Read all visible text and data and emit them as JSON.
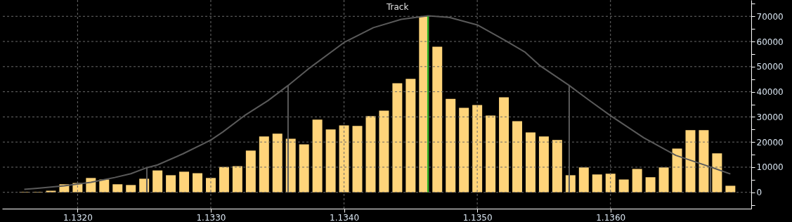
{
  "chart_data": {
    "type": "bar",
    "annotations": [
      "Track"
    ],
    "xlim": [
      1.13146,
      1.13703
    ],
    "xticks": [
      {
        "value": 1.132,
        "label": "1.1320"
      },
      {
        "value": 1.133,
        "label": "1.1330"
      },
      {
        "value": 1.134,
        "label": "1.1340"
      },
      {
        "value": 1.135,
        "label": "1.1350"
      },
      {
        "value": 1.136,
        "label": "1.1360"
      }
    ],
    "ylim": [
      -6500,
      76500
    ],
    "yticks": [
      {
        "value": -5000,
        "label": null
      },
      0,
      {
        "value": 5000,
        "label": null
      },
      10000,
      {
        "value": 15000,
        "label": null
      },
      20000,
      {
        "value": 25000,
        "label": null
      },
      30000,
      {
        "value": 35000,
        "label": null
      },
      40000,
      {
        "value": 45000,
        "label": null
      },
      50000,
      {
        "value": 55000,
        "label": null
      },
      60000,
      {
        "value": 65000,
        "label": null
      },
      70000,
      {
        "value": 75000,
        "label": null
      }
    ],
    "grid": true,
    "series": [
      {
        "color": "#ffd47a",
        "x": [
          1.1316,
          1.1317,
          1.1318,
          1.1319,
          1.132,
          1.1321,
          1.1322,
          1.1323,
          1.1324,
          1.1325,
          1.1326,
          1.1327,
          1.1328,
          1.1329,
          1.133,
          1.1331,
          1.1332,
          1.1333,
          1.1334,
          1.1335,
          1.1336,
          1.1337,
          1.1338,
          1.1339,
          1.134,
          1.1341,
          1.1342,
          1.1343,
          1.1344,
          1.1345,
          1.1346,
          1.1347,
          1.1348,
          1.1349,
          1.135,
          1.1351,
          1.1352,
          1.1353,
          1.1354,
          1.1355,
          1.1356,
          1.1357,
          1.1358,
          1.1359,
          1.136,
          1.1361,
          1.1362,
          1.1363,
          1.1364,
          1.1365,
          1.1366,
          1.1367,
          1.1368,
          1.1369
        ],
        "values": [
          200,
          200,
          600,
          3200,
          3700,
          5700,
          5100,
          3200,
          2900,
          5400,
          8700,
          6800,
          8200,
          7600,
          5700,
          10100,
          10400,
          16600,
          22200,
          23300,
          21300,
          19100,
          28900,
          25000,
          26600,
          26400,
          30300,
          32500,
          43400,
          45100,
          70000,
          57900,
          37200,
          33600,
          34700,
          30500,
          37800,
          28300,
          23800,
          22200,
          20800,
          6800,
          9900,
          7100,
          7400,
          5100,
          9300,
          6000,
          9900,
          17400,
          24700,
          24700,
          15500,
          2600
        ]
      },
      {
        "type": "line",
        "color": "#5a5a5a",
        "marker": "none",
        "x": [
          1.1316,
          1.1317,
          1.1319,
          1.1321,
          1.13228,
          1.1324,
          1.13252,
          1.1326,
          1.13279,
          1.133,
          1.13309,
          1.13325,
          1.13343,
          1.13358,
          1.13373,
          1.134,
          1.13422,
          1.13443,
          1.13463,
          1.13479,
          1.135,
          1.13521,
          1.13536,
          1.13547,
          1.13569,
          1.13584,
          1.136,
          1.13625,
          1.13649,
          1.13675,
          1.1369
        ],
        "values": [
          1200,
          1600,
          2600,
          4000,
          5900,
          7400,
          9800,
          10900,
          15300,
          20800,
          24000,
          30400,
          36500,
          42500,
          49000,
          59600,
          65500,
          68800,
          70200,
          69600,
          66600,
          60400,
          55700,
          50400,
          42500,
          36600,
          30500,
          21700,
          14700,
          10100,
          7300
        ]
      },
      {
        "type": "line",
        "color": "#5a5a5a",
        "marker": "none",
        "x": [
          1.13252,
          1.13252
        ],
        "values": [
          0,
          9800
        ]
      },
      {
        "type": "line",
        "color": "#5a5a5a",
        "marker": "none",
        "x": [
          1.13358,
          1.13358
        ],
        "values": [
          0,
          42500
        ]
      },
      {
        "type": "line",
        "color": "#5a5a5a",
        "marker": "none",
        "x": [
          1.13569,
          1.13569
        ],
        "values": [
          0,
          42500
        ]
      },
      {
        "type": "line",
        "color": "#5a5a5a",
        "marker": "none",
        "x": [
          1.13675,
          1.13675
        ],
        "values": [
          0,
          10100
        ]
      },
      {
        "type": "line",
        "color": "#1fb21f",
        "marker": "none",
        "x": [
          1.13463,
          1.13463
        ],
        "values": [
          70000,
          0
        ]
      }
    ]
  }
}
